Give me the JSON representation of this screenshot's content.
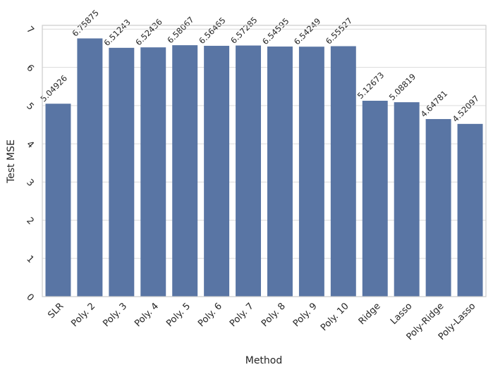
{
  "chart_data": {
    "type": "bar",
    "x_label": "Method",
    "y_label": "Test MSE",
    "categories": [
      "SLR",
      "Poly. 2",
      "Poly. 3",
      "Poly. 4",
      "Poly. 5",
      "Poly. 6",
      "Poly. 7",
      "Poly. 8",
      "Poly. 9",
      "Poly. 10",
      "Ridge",
      "Lasso",
      "Poly-Ridge",
      "Poly-Lasso"
    ],
    "values": [
      5.04926,
      6.75875,
      6.51243,
      6.52436,
      6.58067,
      6.56465,
      6.57285,
      6.54595,
      6.54249,
      6.55527,
      5.12673,
      5.08819,
      4.64781,
      4.52097
    ],
    "color": "#5975a4",
    "ylim": [
      0,
      7.1
    ],
    "yticks": [
      0,
      1,
      2,
      3,
      4,
      5,
      6,
      7
    ],
    "grid": true
  }
}
